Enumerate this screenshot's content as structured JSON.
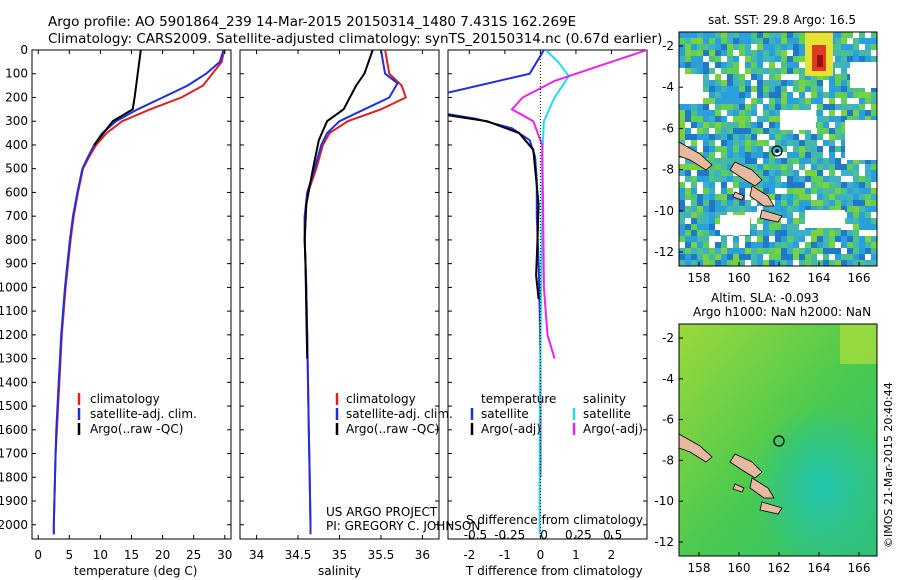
{
  "header": {
    "line1": "Argo profile: AO 5901864_239 14-Mar-2015 20150314_1480 7.431S 162.269E",
    "line2": "Climatology: CARS2009. Satellite-adjusted climatology: synTS_20150314.nc (0.67d earlier)"
  },
  "credit": {
    "line1": "US ARGO PROJECT",
    "line2": "PI: GREGORY C. JOHNSON"
  },
  "stamp": "©IMOS 21-Mar-2015 20:40:44",
  "colors": {
    "climatology": "#e02020",
    "satellite": "#1f2fe0",
    "argo": "#000000",
    "sal_satellite": "#22dcee",
    "sal_argo": "#ee22ee"
  },
  "depth_axis": {
    "ticks": [
      0,
      100,
      200,
      300,
      400,
      500,
      600,
      700,
      800,
      900,
      1000,
      1100,
      1200,
      1300,
      1400,
      1500,
      1600,
      1700,
      1800,
      1900,
      2000
    ]
  },
  "legend_clim": [
    "climatology",
    "satellite-adj. clim.",
    "Argo(..raw -QC)"
  ],
  "legend_diff": {
    "temp_title": "temperature",
    "sal_title": "salinity",
    "temp_items": [
      "satellite",
      "Argo(-adj)"
    ],
    "sal_items": [
      "satellite",
      "Argo(-adj)"
    ]
  },
  "maps": {
    "sst": {
      "title": "sat. SST: 29.8 Argo: 16.5",
      "xticks": [
        "158",
        "160",
        "162",
        "164",
        "166"
      ],
      "yticks": [
        "-2",
        "-4",
        "-6",
        "-8",
        "-10",
        "-12"
      ]
    },
    "sla": {
      "title1": "Altim. SLA: -0.093",
      "title2": "Argo h1000: NaN h2000: NaN",
      "xticks": [
        "158",
        "160",
        "162",
        "164",
        "166"
      ],
      "yticks": [
        "-2",
        "-4",
        "-6",
        "-8",
        "-10",
        "-12"
      ]
    }
  },
  "chart_data": [
    {
      "type": "line",
      "xlabel": "temperature (deg C)",
      "xlim": [
        -1,
        31
      ],
      "ylim": [
        0,
        2060
      ],
      "y_reversed": true,
      "xticks": [
        0,
        5,
        10,
        15,
        20,
        25,
        30
      ],
      "series": [
        {
          "name": "climatology",
          "points": [
            [
              29.9,
              0
            ],
            [
              29.5,
              50
            ],
            [
              28,
              100
            ],
            [
              26.5,
              150
            ],
            [
              23,
              200
            ],
            [
              18,
              250
            ],
            [
              13.5,
              300
            ],
            [
              11,
              350
            ],
            [
              9.3,
              400
            ],
            [
              8.2,
              450
            ],
            [
              7.2,
              500
            ],
            [
              6.4,
              600
            ],
            [
              5.7,
              700
            ],
            [
              5.2,
              800
            ],
            [
              4.8,
              900
            ],
            [
              4.4,
              1000
            ],
            [
              4.1,
              1100
            ],
            [
              3.8,
              1200
            ],
            [
              3.6,
              1300
            ],
            [
              3.4,
              1400
            ],
            [
              3.2,
              1500
            ],
            [
              3.0,
              1600
            ],
            [
              2.8,
              1700
            ],
            [
              2.7,
              1800
            ],
            [
              2.6,
              1900
            ],
            [
              2.5,
              2000
            ],
            [
              2.5,
              2040
            ]
          ]
        },
        {
          "name": "satellite-adj. clim.",
          "points": [
            [
              29.8,
              0
            ],
            [
              29.2,
              50
            ],
            [
              27,
              100
            ],
            [
              24,
              150
            ],
            [
              20,
              200
            ],
            [
              16,
              250
            ],
            [
              12.5,
              300
            ],
            [
              10.3,
              350
            ],
            [
              9.0,
              400
            ],
            [
              8.0,
              450
            ],
            [
              7.1,
              500
            ],
            [
              6.3,
              600
            ],
            [
              5.6,
              700
            ],
            [
              5.1,
              800
            ],
            [
              4.7,
              900
            ],
            [
              4.3,
              1000
            ],
            [
              4.0,
              1100
            ],
            [
              3.7,
              1200
            ],
            [
              3.5,
              1300
            ],
            [
              3.3,
              1400
            ],
            [
              3.1,
              1500
            ],
            [
              2.9,
              1600
            ],
            [
              2.8,
              1700
            ],
            [
              2.7,
              1800
            ],
            [
              2.6,
              1900
            ],
            [
              2.5,
              2000
            ],
            [
              2.5,
              2040
            ]
          ]
        },
        {
          "name": "Argo(..raw -QC)",
          "points": [
            [
              16.5,
              0
            ],
            [
              16,
              100
            ],
            [
              15.5,
              200
            ],
            [
              15.2,
              250
            ],
            [
              12,
              300
            ],
            [
              10.5,
              350
            ],
            [
              9.0,
              400
            ]
          ]
        }
      ]
    },
    {
      "type": "line",
      "xlabel": "salinity",
      "xlim": [
        33.8,
        36.2
      ],
      "ylim": [
        0,
        2060
      ],
      "y_reversed": true,
      "xticks": [
        34,
        34.5,
        35,
        35.5,
        36
      ],
      "series": [
        {
          "name": "climatology",
          "points": [
            [
              35.55,
              0
            ],
            [
              35.6,
              100
            ],
            [
              35.75,
              150
            ],
            [
              35.8,
              200
            ],
            [
              35.5,
              250
            ],
            [
              35.1,
              300
            ],
            [
              34.88,
              350
            ],
            [
              34.8,
              400
            ],
            [
              34.72,
              500
            ],
            [
              34.62,
              600
            ],
            [
              34.58,
              700
            ],
            [
              34.58,
              800
            ],
            [
              34.59,
              900
            ],
            [
              34.6,
              1000
            ],
            [
              34.61,
              1200
            ],
            [
              34.62,
              1400
            ],
            [
              34.63,
              1600
            ],
            [
              34.64,
              1800
            ],
            [
              34.65,
              2000
            ],
            [
              34.65,
              2040
            ]
          ]
        },
        {
          "name": "satellite-adj. clim.",
          "points": [
            [
              35.5,
              0
            ],
            [
              35.55,
              100
            ],
            [
              35.7,
              140
            ],
            [
              35.6,
              200
            ],
            [
              35.3,
              250
            ],
            [
              35.0,
              300
            ],
            [
              34.85,
              350
            ],
            [
              34.78,
              400
            ],
            [
              34.7,
              500
            ],
            [
              34.61,
              600
            ],
            [
              34.58,
              700
            ],
            [
              34.58,
              800
            ],
            [
              34.59,
              900
            ],
            [
              34.6,
              1000
            ],
            [
              34.61,
              1200
            ],
            [
              34.62,
              1400
            ],
            [
              34.63,
              1600
            ],
            [
              34.64,
              1800
            ],
            [
              34.65,
              2000
            ],
            [
              34.65,
              2040
            ]
          ]
        },
        {
          "name": "Argo(..raw -QC)",
          "points": [
            [
              35.4,
              0
            ],
            [
              35.3,
              100
            ],
            [
              35.2,
              150
            ],
            [
              35.05,
              250
            ],
            [
              34.85,
              300
            ],
            [
              34.75,
              380
            ],
            [
              34.68,
              500
            ],
            [
              34.6,
              650
            ],
            [
              34.58,
              800
            ],
            [
              34.59,
              900
            ],
            [
              34.6,
              1100
            ],
            [
              34.61,
              1300
            ]
          ]
        }
      ]
    },
    {
      "type": "line",
      "xlabel": "T difference from climatology",
      "title": "S difference from climatology",
      "xlim": [
        -2.6,
        3.0
      ],
      "ylim": [
        0,
        2060
      ],
      "y_reversed": true,
      "xticks": [
        -2,
        -1,
        0,
        1,
        2
      ],
      "top_xticks": [
        "-0.5",
        "-0.25",
        "0",
        "0.25",
        "0.5"
      ],
      "series": [
        {
          "name": "temperature satellite",
          "points": [
            [
              0.1,
              0
            ],
            [
              -0.3,
              100
            ],
            [
              -2.6,
              180
            ]
          ]
        },
        {
          "name": "temperature satellite (deep)",
          "points": [
            [
              -2.6,
              270
            ],
            [
              -1.8,
              290
            ],
            [
              -0.8,
              330
            ],
            [
              -0.3,
              380
            ],
            [
              -0.15,
              450
            ],
            [
              -0.1,
              550
            ],
            [
              -0.1,
              700
            ],
            [
              -0.05,
              900
            ],
            [
              -0.02,
              1100
            ],
            [
              0.0,
              1300
            ],
            [
              0.0,
              1600
            ],
            [
              0.0,
              1800
            ]
          ]
        },
        {
          "name": "temperature Argo(-adj)",
          "points": [
            [
              -2.6,
              275
            ],
            [
              -1.5,
              300
            ],
            [
              -0.6,
              350
            ],
            [
              -0.2,
              420
            ],
            [
              -0.15,
              500
            ],
            [
              -0.05,
              650
            ],
            [
              -0.08,
              800
            ],
            [
              -0.12,
              950
            ],
            [
              -0.05,
              1050
            ]
          ]
        },
        {
          "name": "salinity satellite",
          "points": [
            [
              0.15,
              0
            ],
            [
              0.5,
              50
            ],
            [
              0.8,
              110
            ],
            [
              0.4,
              200
            ],
            [
              0.1,
              300
            ],
            [
              0.05,
              450
            ],
            [
              0.05,
              700
            ],
            [
              0.02,
              1000
            ],
            [
              0.0,
              1300
            ],
            [
              -0.02,
              1600
            ],
            [
              -0.02,
              2000
            ],
            [
              -0.02,
              2040
            ]
          ]
        },
        {
          "name": "salinity Argo(-adj)",
          "points": [
            [
              3.0,
              0
            ],
            [
              1.8,
              60
            ],
            [
              0.4,
              130
            ],
            [
              -0.5,
              200
            ],
            [
              -0.8,
              250
            ],
            [
              -0.2,
              300
            ],
            [
              0.05,
              400
            ],
            [
              0.08,
              700
            ],
            [
              0.1,
              1000
            ],
            [
              0.2,
              1200
            ],
            [
              0.4,
              1300
            ]
          ]
        }
      ]
    }
  ]
}
